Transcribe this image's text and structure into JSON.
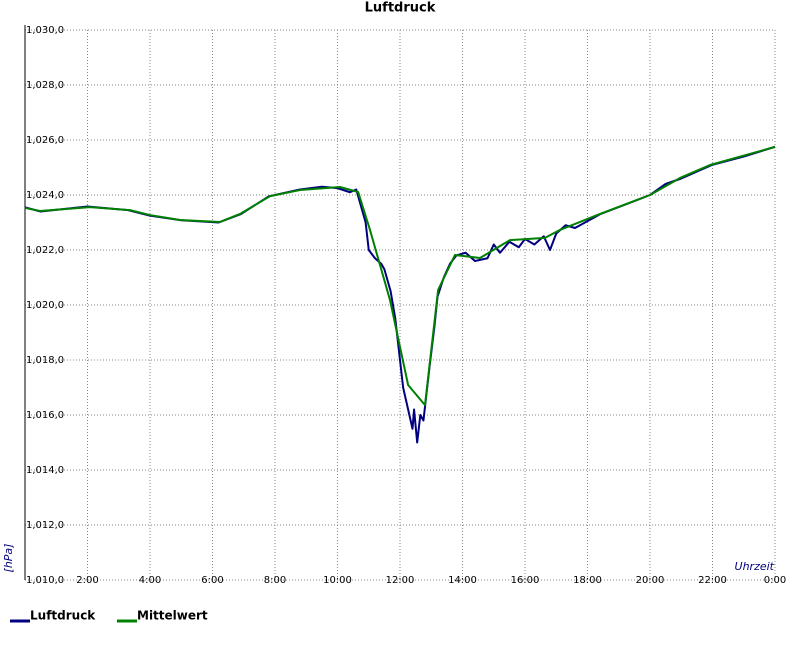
{
  "chart_data": {
    "type": "line",
    "title": "Luftdruck",
    "ylabel": "[hPa]",
    "xlabel": "Uhrzeit",
    "xlim": [
      0,
      24
    ],
    "ylim": [
      1010,
      1030
    ],
    "xticks": [
      {
        "value": 2,
        "label": "2:00"
      },
      {
        "value": 4,
        "label": "4:00"
      },
      {
        "value": 6,
        "label": "6:00"
      },
      {
        "value": 8,
        "label": "8:00"
      },
      {
        "value": 10,
        "label": "10:00"
      },
      {
        "value": 12,
        "label": "12:00"
      },
      {
        "value": 14,
        "label": "14:00"
      },
      {
        "value": 16,
        "label": "16:00"
      },
      {
        "value": 18,
        "label": "18:00"
      },
      {
        "value": 20,
        "label": "20:00"
      },
      {
        "value": 22,
        "label": "22:00"
      },
      {
        "value": 24,
        "label": "0:00"
      }
    ],
    "yticks": [
      {
        "value": 1010,
        "label": "1,010,0"
      },
      {
        "value": 1012,
        "label": "1,012,0"
      },
      {
        "value": 1014,
        "label": "1,014,0"
      },
      {
        "value": 1016,
        "label": "1,016,0"
      },
      {
        "value": 1018,
        "label": "1,018,0"
      },
      {
        "value": 1020,
        "label": "1,020,0"
      },
      {
        "value": 1022,
        "label": "1,022,0"
      },
      {
        "value": 1024,
        "label": "1,024,0"
      },
      {
        "value": 1026,
        "label": "1,026,0"
      },
      {
        "value": 1028,
        "label": "1,028,0"
      },
      {
        "value": 1030,
        "label": "1,030,0"
      }
    ],
    "grid": true,
    "series": [
      {
        "name": "Luftdruck",
        "color": "#000080",
        "x": [
          0,
          0.5,
          2,
          3.3,
          4,
          5,
          6.2,
          6.9,
          7.8,
          8.8,
          9.5,
          10.0,
          10.4,
          10.6,
          10.7,
          10.9,
          11.0,
          11.2,
          11.4,
          11.5,
          11.7,
          11.85,
          12.0,
          12.1,
          12.2,
          12.3,
          12.4,
          12.45,
          12.55,
          12.65,
          12.75,
          12.85,
          12.95,
          13.1,
          13.2,
          13.4,
          13.6,
          13.8,
          14.1,
          14.4,
          14.8,
          15.0,
          15.2,
          15.5,
          15.8,
          16.0,
          16.3,
          16.6,
          16.8,
          17.0,
          17.3,
          17.6,
          18.4,
          20.0,
          20.5,
          21.0,
          22,
          23,
          24
        ],
        "values": [
          1023.55,
          1023.4,
          1023.58,
          1023.45,
          1023.25,
          1023.08,
          1023.0,
          1023.3,
          1023.95,
          1024.2,
          1024.3,
          1024.25,
          1024.1,
          1024.2,
          1023.8,
          1023.0,
          1022.0,
          1021.7,
          1021.5,
          1021.3,
          1020.5,
          1019.5,
          1018.0,
          1017.0,
          1016.5,
          1016.0,
          1015.5,
          1016.2,
          1015.0,
          1016.0,
          1015.8,
          1016.8,
          1017.8,
          1019.2,
          1020.3,
          1021.0,
          1021.5,
          1021.8,
          1021.9,
          1021.6,
          1021.7,
          1022.2,
          1021.9,
          1022.3,
          1022.1,
          1022.4,
          1022.2,
          1022.5,
          1022.0,
          1022.6,
          1022.9,
          1022.8,
          1023.3,
          1024.0,
          1024.4,
          1024.6,
          1025.1,
          1025.4,
          1025.75
        ]
      },
      {
        "name": "Mittelwert",
        "color": "#008000",
        "x": [
          0,
          0.48,
          2.08,
          3.36,
          4.0,
          4.96,
          6.24,
          6.88,
          7.84,
          8.8,
          10.08,
          10.66,
          11.04,
          11.68,
          12.26,
          12.8,
          13.22,
          13.76,
          14.56,
          15.52,
          16.64,
          17.12,
          18.4,
          20.0,
          20.96,
          21.92,
          24
        ],
        "values": [
          1023.53,
          1023.42,
          1023.56,
          1023.45,
          1023.27,
          1023.09,
          1023.02,
          1023.31,
          1023.96,
          1024.18,
          1024.29,
          1024.11,
          1022.73,
          1020.18,
          1017.09,
          1016.36,
          1020.55,
          1021.82,
          1021.71,
          1022.36,
          1022.44,
          1022.73,
          1023.31,
          1024.0,
          1024.62,
          1025.09,
          1025.75
        ]
      }
    ]
  }
}
